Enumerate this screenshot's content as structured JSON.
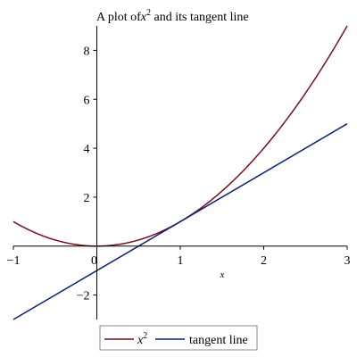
{
  "chart_data": {
    "type": "line",
    "title": {
      "prefix": "A plot of",
      "var": "x",
      "exp": "2",
      "suffix": " and its tangent line"
    },
    "xlabel": "x",
    "ylabel": "",
    "xlim": [
      -1,
      3
    ],
    "ylim": [
      -3,
      9
    ],
    "x_ticks": [
      -1,
      0,
      1,
      2,
      3
    ],
    "x_tick_labels": [
      "−1",
      "0",
      "1",
      "2",
      "3"
    ],
    "y_ticks": [
      -2,
      2,
      4,
      6,
      8
    ],
    "y_tick_labels": [
      "−2",
      "2",
      "4",
      "6",
      "8"
    ],
    "grid": false,
    "legend_placement": "bottom-center",
    "series": [
      {
        "name": "x^2",
        "legend_var": "x",
        "legend_exp": "2",
        "color": "#7a0f1c",
        "x": [
          -1,
          -0.5,
          0,
          0.5,
          1,
          1.5,
          2,
          2.5,
          3
        ],
        "y": [
          1,
          0.25,
          0,
          0.25,
          1,
          2.25,
          4,
          6.25,
          9
        ]
      },
      {
        "name": "tangent line",
        "legend_label": "tangent line",
        "color": "#0a1f72",
        "x": [
          -1,
          3
        ],
        "y": [
          -3,
          5
        ]
      }
    ]
  }
}
